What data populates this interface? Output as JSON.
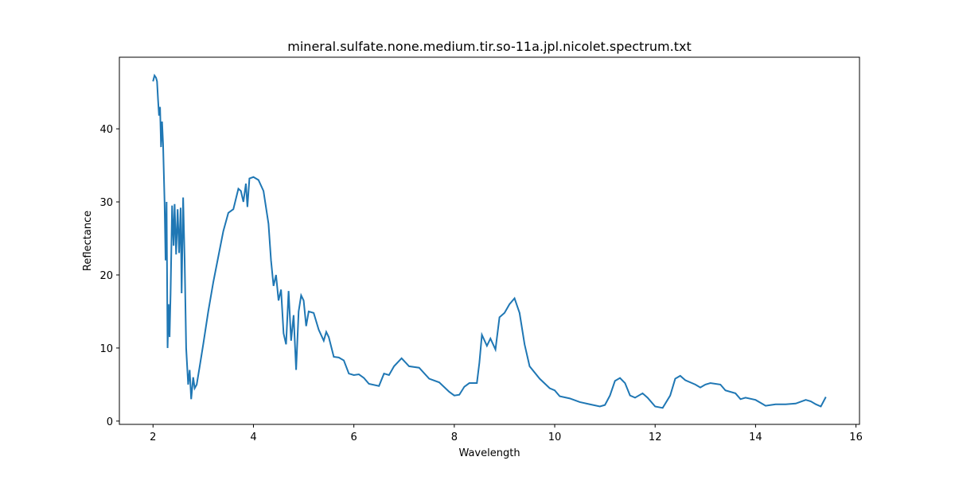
{
  "chart_data": {
    "type": "line",
    "title": "mineral.sulfate.none.medium.tir.so-11a.jpl.nicolet.spectrum.txt",
    "xlabel": "Wavelength",
    "ylabel": "Reflectance",
    "xlim": [
      1.33,
      16.07
    ],
    "ylim": [
      -0.45,
      49.8
    ],
    "xticks": [
      2,
      4,
      6,
      8,
      10,
      12,
      14,
      16
    ],
    "yticks": [
      0,
      10,
      20,
      30,
      40
    ],
    "grid": false,
    "series": [
      {
        "color": "#1f77b4",
        "x": [
          2.0,
          2.03,
          2.06,
          2.08,
          2.1,
          2.12,
          2.14,
          2.16,
          2.18,
          2.2,
          2.23,
          2.25,
          2.27,
          2.29,
          2.31,
          2.33,
          2.35,
          2.38,
          2.41,
          2.43,
          2.46,
          2.49,
          2.52,
          2.55,
          2.57,
          2.6,
          2.63,
          2.66,
          2.7,
          2.73,
          2.76,
          2.8,
          2.83,
          2.87,
          2.93,
          3.0,
          3.1,
          3.2,
          3.3,
          3.4,
          3.5,
          3.6,
          3.7,
          3.75,
          3.8,
          3.85,
          3.88,
          3.92,
          4.0,
          4.1,
          4.2,
          4.3,
          4.35,
          4.4,
          4.45,
          4.5,
          4.55,
          4.6,
          4.65,
          4.7,
          4.75,
          4.8,
          4.85,
          4.9,
          4.95,
          5.0,
          5.05,
          5.1,
          5.2,
          5.3,
          5.4,
          5.45,
          5.5,
          5.6,
          5.7,
          5.8,
          5.9,
          6.0,
          6.1,
          6.2,
          6.3,
          6.5,
          6.6,
          6.7,
          6.8,
          6.95,
          7.1,
          7.3,
          7.5,
          7.7,
          7.9,
          8.0,
          8.1,
          8.2,
          8.3,
          8.45,
          8.5,
          8.55,
          8.65,
          8.72,
          8.82,
          8.9,
          9.0,
          9.1,
          9.2,
          9.3,
          9.4,
          9.5,
          9.7,
          9.9,
          10.0,
          10.1,
          10.3,
          10.5,
          10.7,
          10.9,
          11.0,
          11.1,
          11.2,
          11.3,
          11.4,
          11.5,
          11.6,
          11.75,
          11.85,
          12.0,
          12.15,
          12.3,
          12.4,
          12.5,
          12.6,
          12.8,
          12.9,
          13.0,
          13.1,
          13.3,
          13.4,
          13.6,
          13.7,
          13.8,
          14.0,
          14.1,
          14.2,
          14.4,
          14.6,
          14.8,
          15.0,
          15.1,
          15.2,
          15.3,
          15.4
        ],
        "values": [
          46.5,
          47.3,
          47.0,
          46.5,
          44,
          41.8,
          43,
          37.5,
          41,
          38,
          30,
          22,
          30,
          10,
          16,
          11.5,
          17.5,
          29.5,
          24,
          29.7,
          22.8,
          29,
          23,
          29.2,
          17.5,
          30.6,
          22,
          10,
          5,
          7,
          3,
          6,
          4.5,
          5,
          7.5,
          10.5,
          15,
          19,
          22.5,
          26,
          28.5,
          29,
          31.8,
          31.5,
          30,
          32.5,
          29.3,
          33.2,
          33.4,
          33.0,
          31.5,
          27,
          22,
          18.5,
          20,
          16.5,
          18,
          12,
          10.5,
          17.8,
          11,
          14.5,
          7,
          15,
          17.2,
          16.5,
          13,
          15,
          14.8,
          12.5,
          11,
          12.2,
          11.5,
          8.8,
          8.7,
          8.3,
          6.5,
          6.3,
          6.4,
          5.9,
          5.1,
          4.8,
          6.5,
          6.3,
          7.5,
          8.6,
          7.5,
          7.3,
          5.8,
          5.3,
          4.0,
          3.5,
          3.6,
          4.7,
          5.2,
          5.2,
          8,
          11.8,
          10.3,
          11.3,
          9.8,
          14.2,
          14.8,
          16,
          16.8,
          14.8,
          10.5,
          7.5,
          5.8,
          4.5,
          4.2,
          3.4,
          3.1,
          2.6,
          2.3,
          2.0,
          2.2,
          3.5,
          5.5,
          5.9,
          5.2,
          3.5,
          3.2,
          3.8,
          3.2,
          2.0,
          1.8,
          3.5,
          5.8,
          6.2,
          5.6,
          5.0,
          4.6,
          5.0,
          5.2,
          5.0,
          4.2,
          3.8,
          3.0,
          3.2,
          2.9,
          2.5,
          2.1,
          2.3,
          2.3,
          2.4,
          2.9,
          2.7,
          2.3,
          2.0,
          3.3
        ]
      }
    ]
  }
}
